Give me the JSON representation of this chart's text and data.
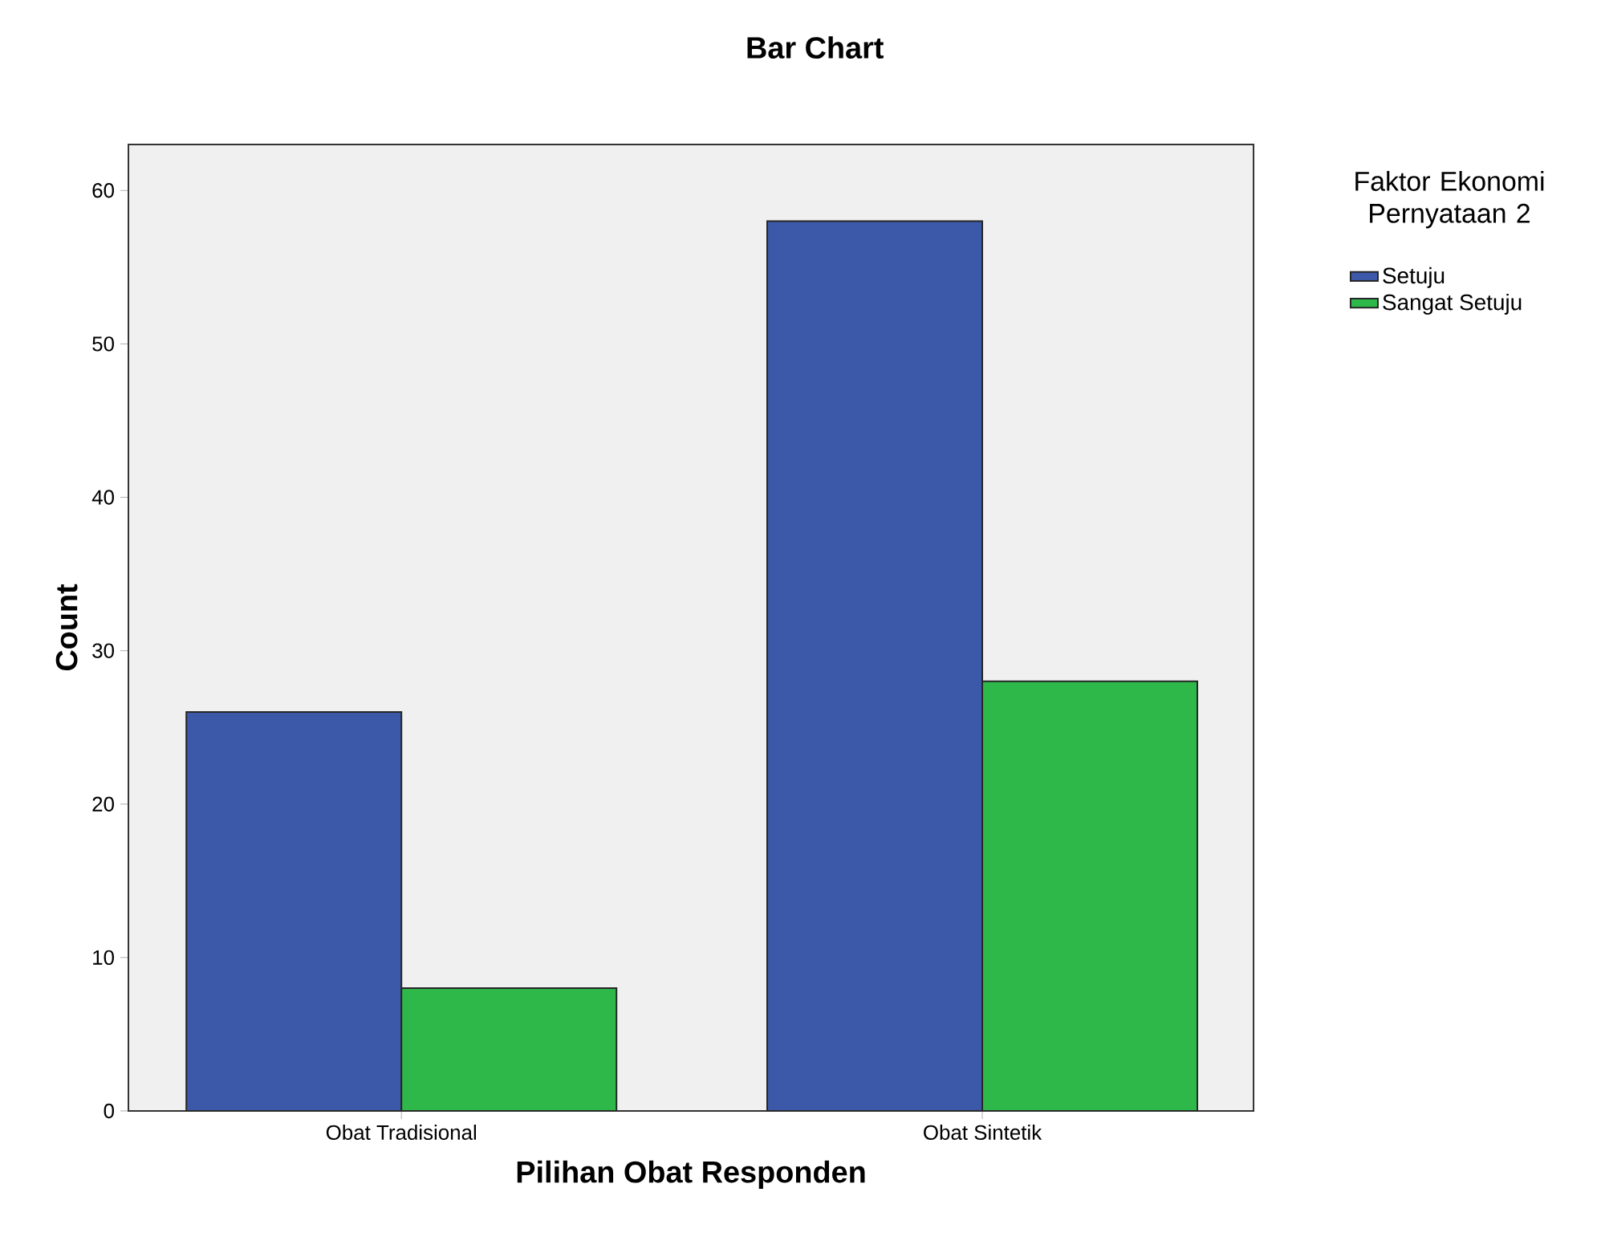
{
  "chart_data": {
    "type": "bar",
    "title": "Bar Chart",
    "xlabel": "Pilihan Obat Responden",
    "ylabel": "Count",
    "legend_title": "Faktor Ekonomi Pernyataan 2",
    "categories": [
      "Obat Tradisional",
      "Obat Sintetik"
    ],
    "series": [
      {
        "name": "Setuju",
        "color": "#3c58a8",
        "values": [
          26,
          58
        ]
      },
      {
        "name": "Sangat Setuju",
        "color": "#2fb84a",
        "values": [
          8,
          28
        ]
      }
    ],
    "ylim": [
      0,
      63
    ],
    "yticks": [
      0,
      10,
      20,
      30,
      40,
      50,
      60
    ],
    "grid": false,
    "legend": "right"
  }
}
